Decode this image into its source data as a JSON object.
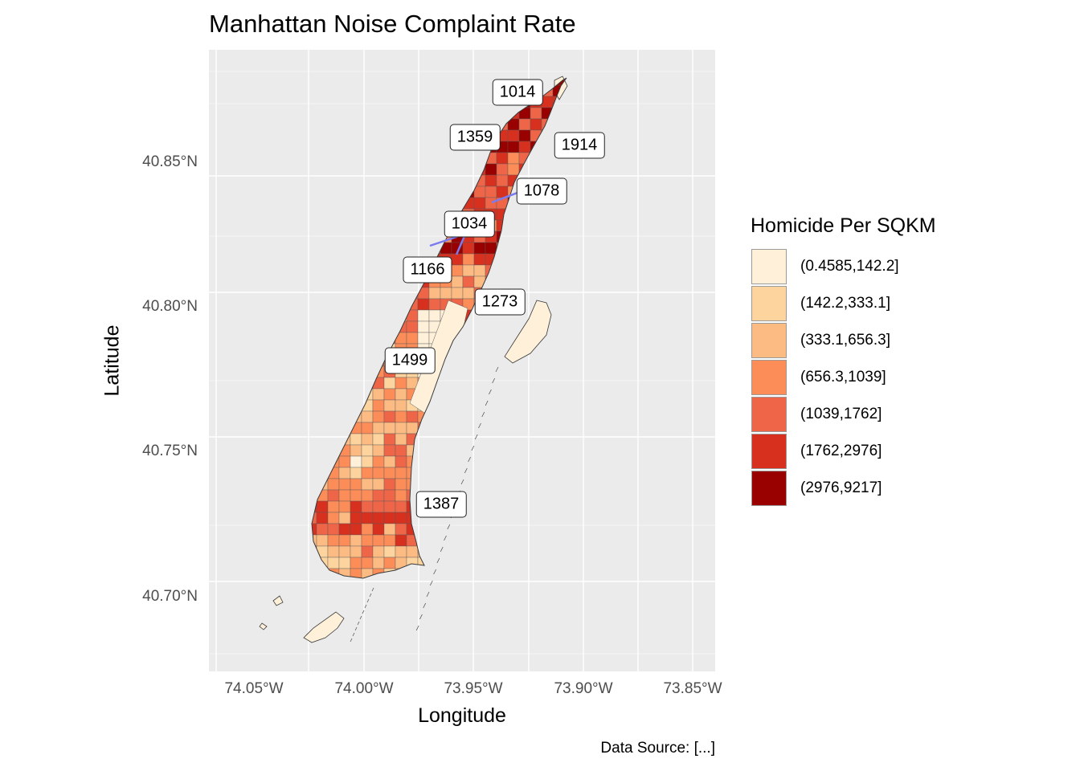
{
  "title": "Manhattan Noise Complaint Rate",
  "axes": {
    "xlabel": "Longitude",
    "ylabel": "Latitude",
    "x_ticks": [
      "74.05°W",
      "74.00°W",
      "73.95°W",
      "73.90°W",
      "73.85°W"
    ],
    "y_ticks": [
      "40.85°N",
      "40.80°N",
      "40.75°N",
      "40.70°N"
    ],
    "xlim": [
      -74.07,
      -73.84
    ],
    "ylim": [
      40.675,
      40.89
    ]
  },
  "caption": "Data Source: [...]",
  "legend": {
    "title": "Homicide Per SQKM",
    "placement": "right",
    "items": [
      {
        "label": "(0.4585,142.2]",
        "color": "#fef0d9"
      },
      {
        "label": "(142.2,333.1]",
        "color": "#fdd49e"
      },
      {
        "label": "(333.1,656.3]",
        "color": "#fdbb84"
      },
      {
        "label": "(656.3,1039]",
        "color": "#fc8d59"
      },
      {
        "label": "(1039,1762]",
        "color": "#ef6548"
      },
      {
        "label": "(1762,2976]",
        "color": "#d7301f"
      },
      {
        "label": "(2976,9217]",
        "color": "#990000"
      }
    ]
  },
  "callouts": [
    {
      "label": "1014"
    },
    {
      "label": "1359"
    },
    {
      "label": "1914"
    },
    {
      "label": "1078"
    },
    {
      "label": "1034"
    },
    {
      "label": "1166"
    },
    {
      "label": "1273"
    },
    {
      "label": "1499"
    },
    {
      "label": "1387"
    }
  ],
  "colors": {
    "panel": "#ebebeb",
    "grid": "#ffffff",
    "leader": "#7b7bef",
    "outline": "#3a3a3a"
  }
}
